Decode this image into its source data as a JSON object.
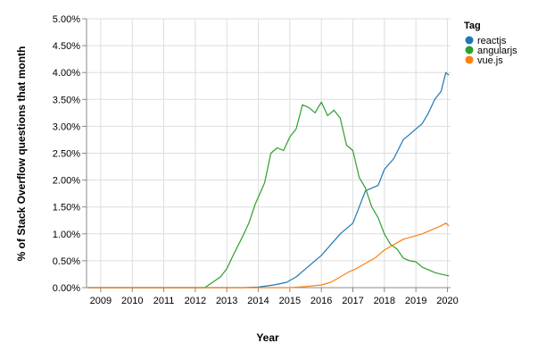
{
  "chart_data": {
    "type": "line",
    "xlabel": "Year",
    "ylabel": "% of Stack Overflow questions that month",
    "xlim": [
      2008.55,
      2020.1
    ],
    "ylim": [
      0,
      5
    ],
    "x_ticks": [
      2009,
      2010,
      2011,
      2012,
      2013,
      2014,
      2015,
      2016,
      2017,
      2018,
      2019,
      2020
    ],
    "x_tick_labels": [
      "2009",
      "2010",
      "2011",
      "2012",
      "2013",
      "2014",
      "2015",
      "2016",
      "2017",
      "2018",
      "2019",
      "2020"
    ],
    "y_ticks": [
      0,
      0.5,
      1,
      1.5,
      2,
      2.5,
      3,
      3.5,
      4,
      4.5,
      5
    ],
    "y_tick_labels": [
      "0.00%",
      "0.50%",
      "1.00%",
      "1.50%",
      "2.00%",
      "2.50%",
      "3.00%",
      "3.50%",
      "4.00%",
      "4.50%",
      "5.00%"
    ],
    "grid": true,
    "legend": {
      "title": "Tag",
      "placement": "right"
    },
    "series": [
      {
        "name": "reactjs",
        "color": "#1f77b4",
        "x": [
          2008.6,
          2013.5,
          2014.0,
          2014.5,
          2014.9,
          2015.2,
          2015.5,
          2015.8,
          2016.0,
          2016.3,
          2016.6,
          2016.8,
          2017.0,
          2017.2,
          2017.4,
          2017.6,
          2017.8,
          2018.0,
          2018.3,
          2018.6,
          2018.8,
          2019.0,
          2019.2,
          2019.4,
          2019.6,
          2019.8,
          2019.95,
          2020.05
        ],
        "y": [
          0,
          0,
          0.01,
          0.05,
          0.1,
          0.2,
          0.35,
          0.5,
          0.6,
          0.8,
          1.0,
          1.1,
          1.2,
          1.5,
          1.8,
          1.85,
          1.9,
          2.2,
          2.4,
          2.75,
          2.85,
          2.95,
          3.05,
          3.25,
          3.5,
          3.65,
          4.0,
          3.95
        ]
      },
      {
        "name": "angularjs",
        "color": "#2ca02c",
        "x": [
          2008.6,
          2012.3,
          2012.5,
          2012.8,
          2013.0,
          2013.2,
          2013.5,
          2013.7,
          2013.9,
          2014.2,
          2014.4,
          2014.6,
          2014.8,
          2015.0,
          2015.2,
          2015.4,
          2015.6,
          2015.8,
          2016.0,
          2016.2,
          2016.4,
          2016.6,
          2016.8,
          2017.0,
          2017.2,
          2017.4,
          2017.6,
          2017.8,
          2018.0,
          2018.2,
          2018.4,
          2018.6,
          2018.8,
          2019.0,
          2019.2,
          2019.4,
          2019.6,
          2019.8,
          2020.05
        ],
        "y": [
          0,
          0,
          0.08,
          0.2,
          0.35,
          0.6,
          0.95,
          1.2,
          1.55,
          1.95,
          2.5,
          2.6,
          2.55,
          2.8,
          2.95,
          3.4,
          3.35,
          3.25,
          3.45,
          3.2,
          3.3,
          3.15,
          2.65,
          2.55,
          2.05,
          1.85,
          1.5,
          1.3,
          1.0,
          0.8,
          0.72,
          0.55,
          0.5,
          0.48,
          0.38,
          0.33,
          0.28,
          0.25,
          0.22
        ]
      },
      {
        "name": "vue.js",
        "color": "#ff7f0e",
        "x": [
          2008.6,
          2015.0,
          2015.5,
          2016.0,
          2016.3,
          2016.6,
          2016.9,
          2017.1,
          2017.4,
          2017.7,
          2018.0,
          2018.3,
          2018.6,
          2018.9,
          2019.2,
          2019.4,
          2019.6,
          2019.8,
          2019.95,
          2020.05
        ],
        "y": [
          0,
          0,
          0.02,
          0.05,
          0.1,
          0.2,
          0.3,
          0.35,
          0.45,
          0.55,
          0.7,
          0.8,
          0.9,
          0.95,
          1.0,
          1.05,
          1.1,
          1.15,
          1.2,
          1.15
        ]
      }
    ]
  }
}
